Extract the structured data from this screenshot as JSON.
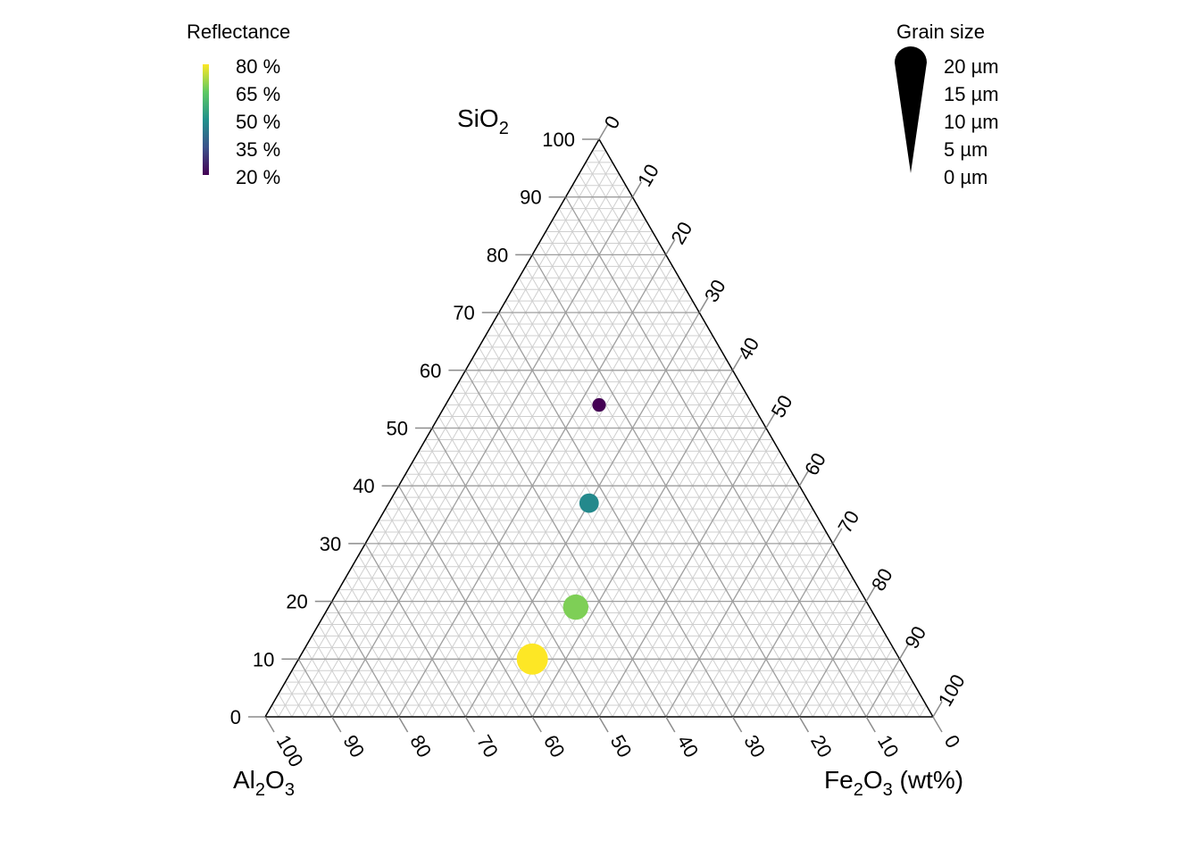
{
  "chart_data": {
    "type": "scatter",
    "subtype": "ternary",
    "axes": {
      "top": {
        "label": "SiO2",
        "main": "SiO",
        "sub": "2",
        "suffix": ""
      },
      "left": {
        "label": "Al2O3",
        "main": "Al",
        "sub": "2",
        "main2": "O",
        "sub2": "3",
        "suffix": ""
      },
      "right": {
        "label": "Fe2O3 (wt%)",
        "main": "Fe",
        "sub": "2",
        "main2": "O",
        "sub2": "3",
        "suffix": " (wt%)"
      }
    },
    "ticks": [
      "0",
      "10",
      "20",
      "30",
      "40",
      "50",
      "60",
      "70",
      "80",
      "90",
      "100"
    ],
    "grid": {
      "major_step": 10,
      "minor_step": 2,
      "major_color": "#9e9e9e",
      "minor_color": "#cfcfcf"
    },
    "points": [
      {
        "SiO2": 54,
        "Al2O3": 23,
        "Fe2O3": 23,
        "reflectance": 20,
        "grain_size": 2
      },
      {
        "SiO2": 37,
        "Al2O3": 33,
        "Fe2O3": 30,
        "reflectance": 48,
        "grain_size": 8
      },
      {
        "SiO2": 19,
        "Al2O3": 44,
        "Fe2O3": 37,
        "reflectance": 68,
        "grain_size": 14
      },
      {
        "SiO2": 10,
        "Al2O3": 55,
        "Fe2O3": 35,
        "reflectance": 80,
        "grain_size": 20
      }
    ],
    "legend_color": {
      "title": "Reflectance",
      "labels": [
        "80 %",
        "65 %",
        "50 %",
        "35 %",
        "20 %"
      ],
      "min": 20,
      "max": 80,
      "colors": [
        "#440154",
        "#3b528b",
        "#21918c",
        "#5ec962",
        "#fde725"
      ],
      "position": "top-left"
    },
    "legend_size": {
      "title": "Grain size",
      "labels": [
        "20 µm",
        "15 µm",
        "10 µm",
        "5 µm",
        "0 µm"
      ],
      "min": 0,
      "max": 20,
      "position": "top-right"
    }
  }
}
